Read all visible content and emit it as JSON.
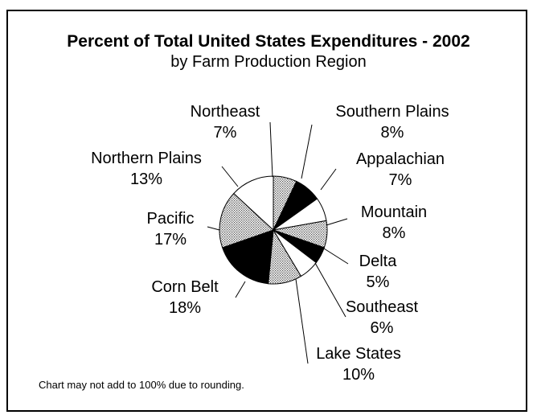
{
  "chart_data": {
    "type": "pie",
    "title": "Percent of Total United States Expenditures - 2002",
    "subtitle": "by Farm Production Region",
    "slices": [
      {
        "name": "Northeast",
        "value": 7,
        "label": "7%",
        "fill": "dots"
      },
      {
        "name": "Southern Plains",
        "value": 8,
        "label": "8%",
        "fill": "black"
      },
      {
        "name": "Appalachian",
        "value": 7,
        "label": "7%",
        "fill": "white"
      },
      {
        "name": "Mountain",
        "value": 8,
        "label": "8%",
        "fill": "dots"
      },
      {
        "name": "Delta",
        "value": 5,
        "label": "5%",
        "fill": "black"
      },
      {
        "name": "Southeast",
        "value": 6,
        "label": "6%",
        "fill": "white"
      },
      {
        "name": "Lake States",
        "value": 10,
        "label": "10%",
        "fill": "dots"
      },
      {
        "name": "Corn Belt",
        "value": 18,
        "label": "18%",
        "fill": "black"
      },
      {
        "name": "Pacific",
        "value": 17,
        "label": "17%",
        "fill": "dots"
      },
      {
        "name": "Northern Plains",
        "value": 13,
        "label": "13%",
        "fill": "white"
      }
    ],
    "footnote": "Chart may not add to 100% due to rounding."
  }
}
